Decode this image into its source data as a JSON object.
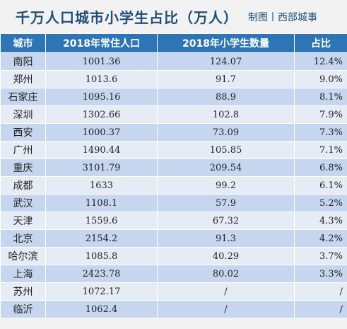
{
  "title": "千万人口城市小学生占比（万人）",
  "credit": "制图丨西部城事",
  "columns": [
    "城市",
    "2018年常住人口",
    "2018年小学生数量",
    "占比"
  ],
  "rows": [
    {
      "city": "南阳",
      "population": "1001.36",
      "students": "124.07",
      "share": "12.4%"
    },
    {
      "city": "郑州",
      "population": "1013.6",
      "students": "91.7",
      "share": "9.0%"
    },
    {
      "city": "石家庄",
      "population": "1095.16",
      "students": "88.9",
      "share": "8.1%"
    },
    {
      "city": "深圳",
      "population": "1302.66",
      "students": "102.8",
      "share": "7.9%"
    },
    {
      "city": "西安",
      "population": "1000.37",
      "students": "73.09",
      "share": "7.3%"
    },
    {
      "city": "广州",
      "population": "1490.44",
      "students": "105.85",
      "share": "7.1%"
    },
    {
      "city": "重庆",
      "population": "3101.79",
      "students": "209.54",
      "share": "6.8%"
    },
    {
      "city": "成都",
      "population": "1633",
      "students": "99.2",
      "share": "6.1%"
    },
    {
      "city": "武汉",
      "population": "1108.1",
      "students": "57.9",
      "share": "5.2%"
    },
    {
      "city": "天津",
      "population": "1559.6",
      "students": "67.32",
      "share": "4.3%"
    },
    {
      "city": "北京",
      "population": "2154.2",
      "students": "91.3",
      "share": "4.2%"
    },
    {
      "city": "哈尔滨",
      "population": "1085.8",
      "students": "40.29",
      "share": "3.7%"
    },
    {
      "city": "上海",
      "population": "2423.78",
      "students": "80.02",
      "share": "3.3%"
    },
    {
      "city": "苏州",
      "population": "1072.17",
      "students": "/",
      "share": "/"
    },
    {
      "city": "临沂",
      "population": "1062.4",
      "students": "/",
      "share": "/"
    }
  ]
}
